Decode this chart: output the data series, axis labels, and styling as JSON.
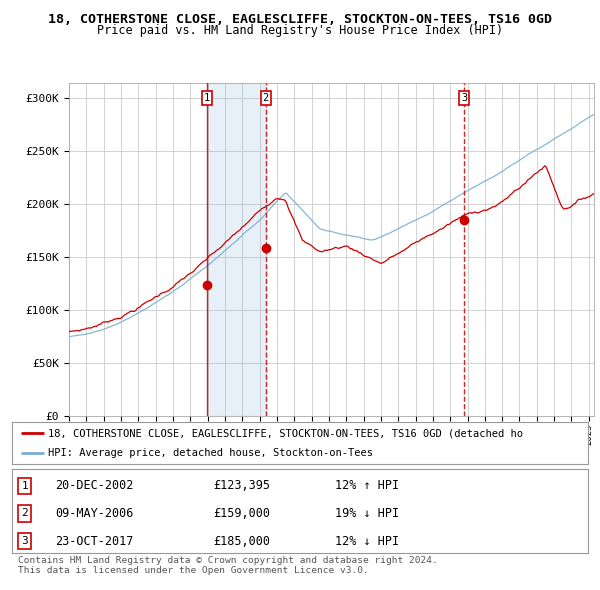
{
  "title": "18, COTHERSTONE CLOSE, EAGLESCLIFFE, STOCKTON-ON-TEES, TS16 0GD",
  "subtitle": "Price paid vs. HM Land Registry's House Price Index (HPI)",
  "ylabel_ticks": [
    "£0",
    "£50K",
    "£100K",
    "£150K",
    "£200K",
    "£250K",
    "£300K"
  ],
  "ytick_vals": [
    0,
    50000,
    100000,
    150000,
    200000,
    250000,
    300000
  ],
  "ylim": [
    0,
    315000
  ],
  "xlim_start": 1995.0,
  "xlim_end": 2025.3,
  "sale_dates": [
    2002.97,
    2006.36,
    2017.81
  ],
  "sale_prices": [
    123395,
    159000,
    185000
  ],
  "sale_labels": [
    "1",
    "2",
    "3"
  ],
  "sale_info": [
    {
      "num": "1",
      "date": "20-DEC-2002",
      "price": "£123,395",
      "note": "12% ↑ HPI"
    },
    {
      "num": "2",
      "date": "09-MAY-2006",
      "price": "£159,000",
      "note": "19% ↓ HPI"
    },
    {
      "num": "3",
      "date": "23-OCT-2017",
      "price": "£185,000",
      "note": "12% ↓ HPI"
    }
  ],
  "legend_line1": "18, COTHERSTONE CLOSE, EAGLESCLIFFE, STOCKTON-ON-TEES, TS16 0GD (detached ho",
  "legend_line2": "HPI: Average price, detached house, Stockton-on-Tees",
  "footnote1": "Contains HM Land Registry data © Crown copyright and database right 2024.",
  "footnote2": "This data is licensed under the Open Government Licence v3.0.",
  "red_color": "#cc0000",
  "blue_color": "#7aaed4",
  "shade_color": "#ddeeff",
  "bg_color": "#ffffff",
  "grid_color": "#cccccc"
}
